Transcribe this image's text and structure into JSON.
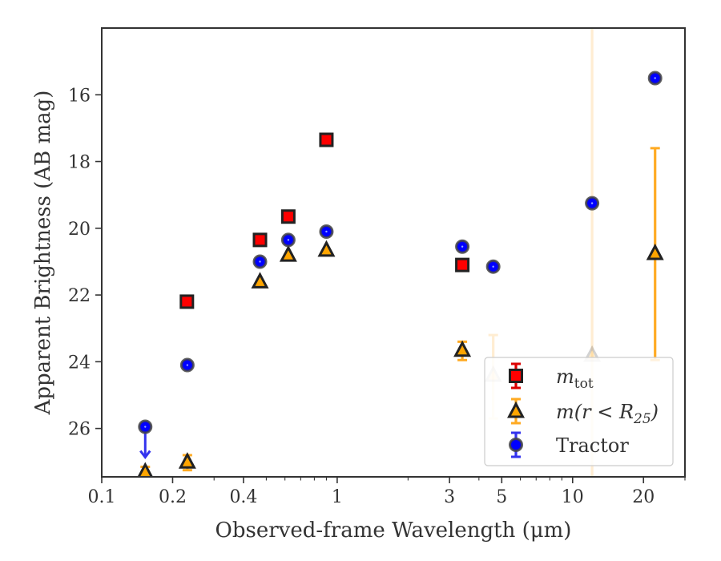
{
  "chart_data": {
    "type": "scatter",
    "xlabel": "Observed-frame Wavelength (μm)",
    "ylabel": "Apparent Brightness (AB mag)",
    "xscale": "log",
    "xlim": [
      0.1,
      30
    ],
    "ylim": [
      27.45,
      14.0
    ],
    "y_inverted": true,
    "grid": false,
    "legend_placement": "lower right",
    "x_ticks": [
      0.1,
      0.2,
      0.4,
      1,
      3,
      5,
      10,
      20
    ],
    "x_tick_labels": [
      "0.1",
      "0.2",
      "0.4",
      "1",
      "3",
      "5",
      "10",
      "20"
    ],
    "y_ticks": [
      16,
      18,
      20,
      22,
      24,
      26
    ],
    "y_tick_labels": [
      "16",
      "18",
      "20",
      "22",
      "24",
      "26"
    ],
    "series": [
      {
        "name": "m_tot",
        "marker": "square",
        "color": "#ff0000",
        "errcolor": "#dd0000",
        "points": [
          {
            "x": 0.23,
            "y": 22.2
          },
          {
            "x": 0.47,
            "y": 20.35
          },
          {
            "x": 0.62,
            "y": 19.65
          },
          {
            "x": 0.9,
            "y": 17.35
          },
          {
            "x": 3.4,
            "y": 21.1
          }
        ]
      },
      {
        "name": "m(r<R25)",
        "marker": "triangle",
        "color": "#ffa500",
        "errcolor": "#ffaa22",
        "points": [
          {
            "x": 0.153,
            "y": 27.3,
            "yerr": [
              0.15,
              0.1
            ]
          },
          {
            "x": 0.231,
            "y": 27.0,
            "yerr": [
              0.2,
              0.25
            ]
          },
          {
            "x": 0.47,
            "y": 21.6
          },
          {
            "x": 0.62,
            "y": 20.8
          },
          {
            "x": 0.9,
            "y": 20.65
          },
          {
            "x": 3.4,
            "y": 23.65,
            "yerr": [
              0.25,
              0.3
            ]
          },
          {
            "x": 4.6,
            "y": 24.4,
            "yerr": [
              1.2,
              1.3
            ],
            "faded": true
          },
          {
            "x": 12.1,
            "y": 23.8,
            "yerr": [
              10,
              3.8
            ],
            "faded": true
          },
          {
            "x": 22.4,
            "y": 20.75,
            "yerr": [
              3.15,
              3.2
            ]
          }
        ]
      },
      {
        "name": "Tractor",
        "marker": "circle",
        "color": "#0000ff",
        "errcolor": "#3333ee",
        "points": [
          {
            "x": 0.153,
            "y": 25.95,
            "upper_limit": true
          },
          {
            "x": 0.231,
            "y": 24.1
          },
          {
            "x": 0.47,
            "y": 21.0
          },
          {
            "x": 0.62,
            "y": 20.35
          },
          {
            "x": 0.9,
            "y": 20.1
          },
          {
            "x": 3.4,
            "y": 20.55
          },
          {
            "x": 4.6,
            "y": 21.15
          },
          {
            "x": 12.1,
            "y": 19.25
          },
          {
            "x": 22.4,
            "y": 15.5
          }
        ]
      }
    ],
    "legend": [
      {
        "marker": "square",
        "base": "m",
        "sub": "tot"
      },
      {
        "marker": "triangle",
        "text": "m(r < R",
        "sub": "25",
        "tail": ")"
      },
      {
        "marker": "circle",
        "text": "Tractor"
      }
    ]
  }
}
